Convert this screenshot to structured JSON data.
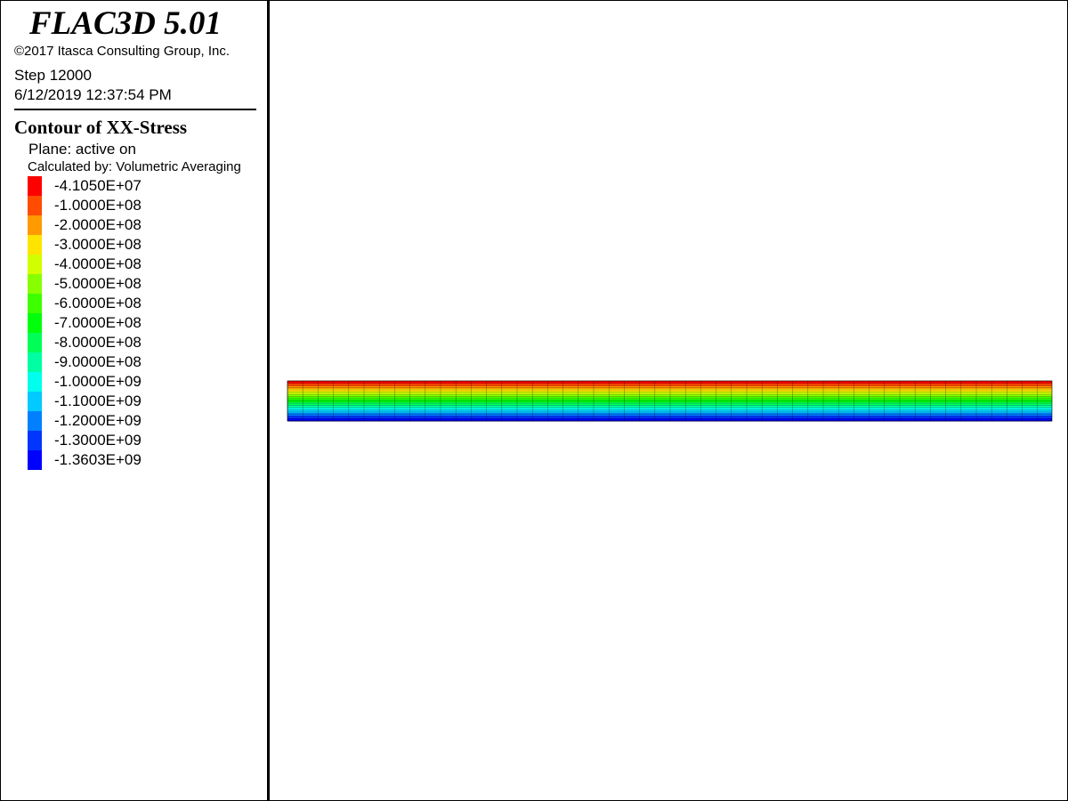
{
  "header": {
    "title": "FLAC3D 5.01",
    "copyright": "©2017 Itasca Consulting Group, Inc.",
    "step": "Step 12000",
    "timestamp": "6/12/2019 12:37:54 PM"
  },
  "legend": {
    "title": "Contour of XX-Stress",
    "plane": "Plane: active on",
    "method": "Calculated by: Volumetric Averaging",
    "items": [
      {
        "label": "-4.1050E+07",
        "color": "#ff0000"
      },
      {
        "label": "-1.0000E+08",
        "color": "#ff4c00"
      },
      {
        "label": "-2.0000E+08",
        "color": "#ff9a00"
      },
      {
        "label": "-3.0000E+08",
        "color": "#ffe400"
      },
      {
        "label": "-4.0000E+08",
        "color": "#d2ff00"
      },
      {
        "label": "-5.0000E+08",
        "color": "#88ff00"
      },
      {
        "label": "-6.0000E+08",
        "color": "#3eff00"
      },
      {
        "label": "-7.0000E+08",
        "color": "#00ff0c"
      },
      {
        "label": "-8.0000E+08",
        "color": "#00ff56"
      },
      {
        "label": "-9.0000E+08",
        "color": "#00ffa2"
      },
      {
        "label": "-1.0000E+09",
        "color": "#00ffec"
      },
      {
        "label": "-1.1000E+09",
        "color": "#00caff"
      },
      {
        "label": "-1.2000E+09",
        "color": "#0080ff"
      },
      {
        "label": "-1.3000E+09",
        "color": "#0036ff"
      },
      {
        "label": "-1.3603E+09",
        "color": "#0000ff"
      }
    ]
  }
}
